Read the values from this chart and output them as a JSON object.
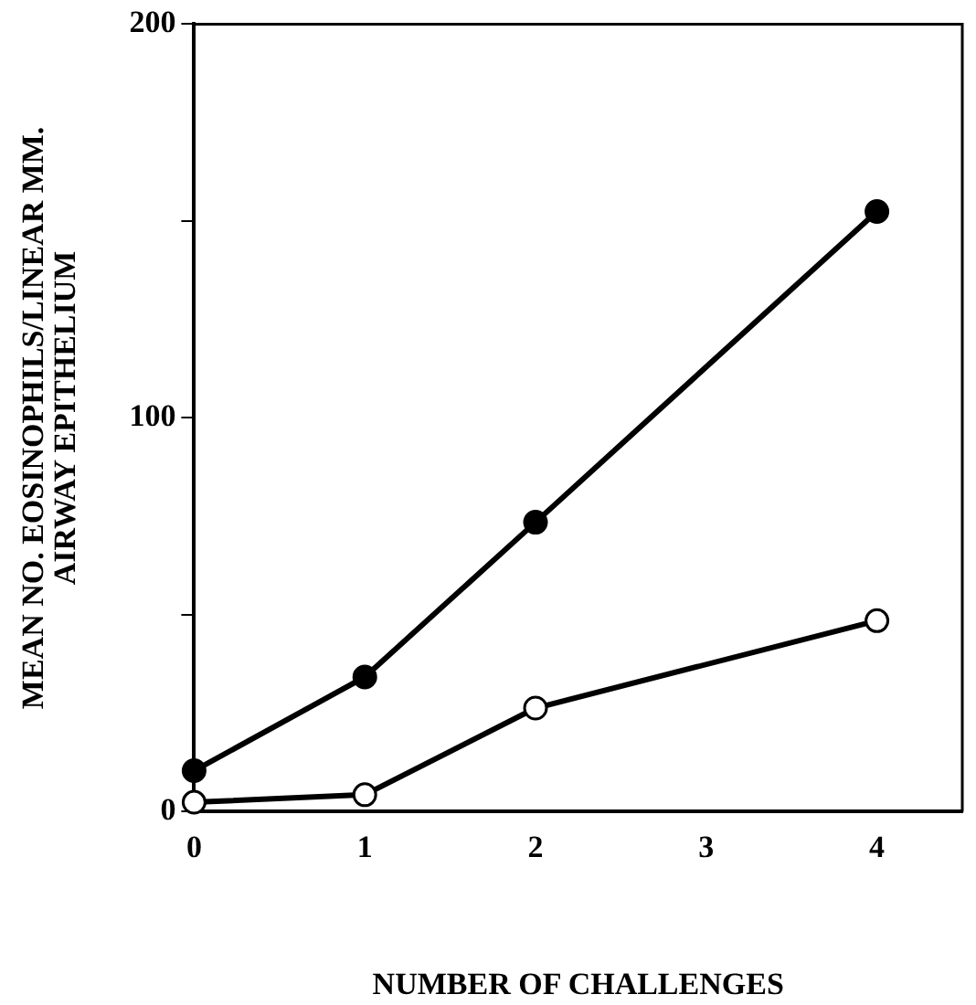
{
  "chart_data": {
    "type": "line",
    "xlabel": "NUMBER OF CHALLENGES",
    "ylabel": "MEAN NO. EOSINOPHILS/LINEAR MM.\nAIRWAY EPITHELIUM",
    "x": [
      0,
      1,
      2,
      4
    ],
    "series": [
      {
        "color": "#000000",
        "colors": [
          "#000000",
          "#000000",
          "#000000",
          "#000000"
        ],
        "values": [
          10.4,
          34.2,
          73.5,
          152.4
        ]
      },
      {
        "color": "#000000",
        "colors": [
          "#ffffff",
          "#ffffff",
          "#ffffff",
          "#ffffff"
        ],
        "values": [
          2.4,
          4.3,
          26.3,
          48.5
        ]
      }
    ],
    "xlim": [
      0,
      4.5
    ],
    "xticks": [
      0,
      1,
      2,
      3,
      4
    ],
    "ylim": [
      0,
      200
    ],
    "yticks": [
      0,
      {
        "value": 50,
        "label": null
      },
      100,
      {
        "value": 150,
        "label": null
      },
      200
    ],
    "grid": false,
    "legend": false,
    "marker": "circle",
    "line_style": "solid"
  }
}
